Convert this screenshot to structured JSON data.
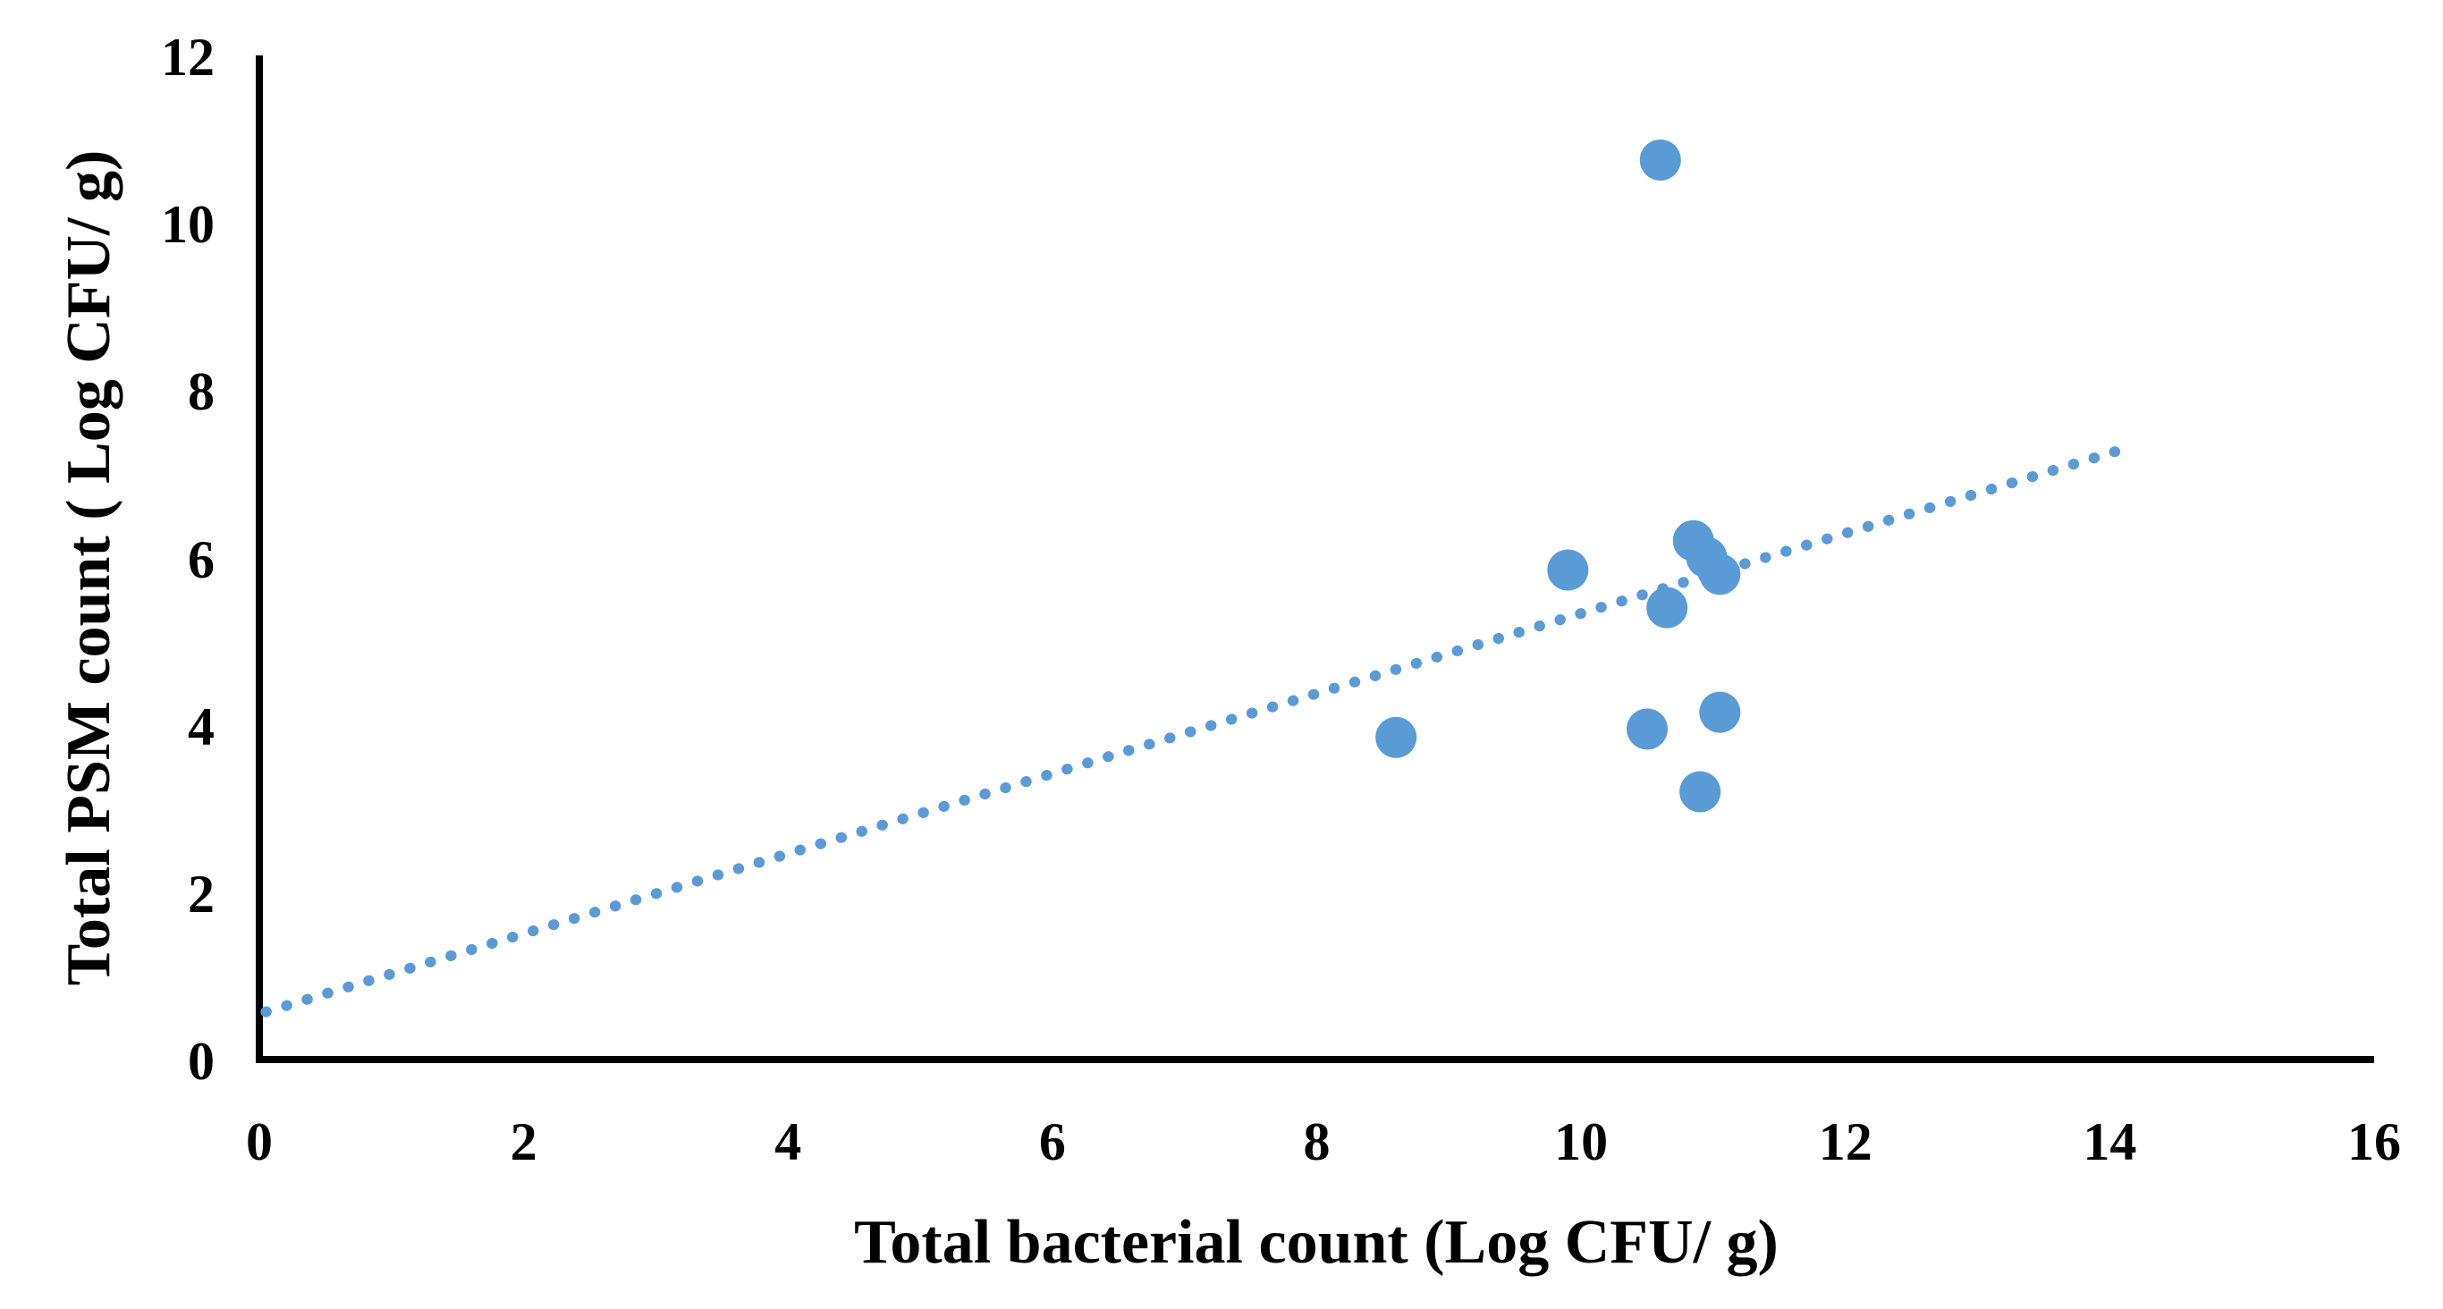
{
  "chart_data": {
    "type": "scatter",
    "title": "",
    "xlabel": "Total bacterial count (Log CFU/ g)",
    "ylabel": "Total PSM count ( Log CFU/ g)",
    "xlim": [
      0,
      16
    ],
    "ylim": [
      0,
      12
    ],
    "xticks": [
      "0",
      "2",
      "4",
      "6",
      "8",
      "10",
      "12",
      "14",
      "16"
    ],
    "xtick_values": [
      0,
      2,
      4,
      6,
      8,
      10,
      12,
      14,
      16
    ],
    "yticks": [
      "0",
      "2",
      "4",
      "6",
      "8",
      "10",
      "12"
    ],
    "ytick_values": [
      0,
      2,
      4,
      6,
      8,
      10,
      12
    ],
    "grid": false,
    "legend": false,
    "marker_color": "#5B9BD5",
    "trendline_color": "#5B9BD5",
    "axis_color": "#000000",
    "points": [
      [
        8.6,
        3.85
      ],
      [
        9.9,
        5.85
      ],
      [
        10.5,
        3.95
      ],
      [
        10.65,
        5.4
      ],
      [
        10.6,
        10.75
      ],
      [
        10.85,
        6.2
      ],
      [
        10.95,
        6.0
      ],
      [
        11.05,
        5.8
      ],
      [
        11.05,
        4.15
      ],
      [
        10.9,
        3.2
      ]
    ],
    "trendline": {
      "style": "dotted",
      "x1": 0.05,
      "y1": 0.57,
      "x2": 14.05,
      "y2": 7.27
    }
  }
}
